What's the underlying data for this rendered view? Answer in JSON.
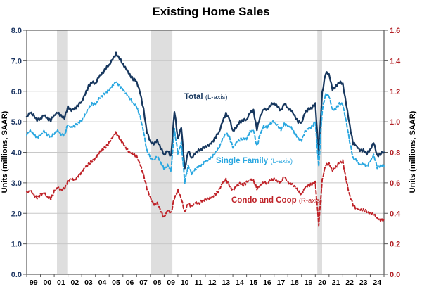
{
  "title": "Existing Home Sales",
  "chart_data": {
    "type": "line",
    "title": "Existing Home Sales",
    "x_range": [
      1999,
      2025
    ],
    "x_tick_labels": [
      "99",
      "00",
      "01",
      "02",
      "03",
      "04",
      "05",
      "06",
      "07",
      "08",
      "09",
      "10",
      "11",
      "12",
      "13",
      "14",
      "15",
      "16",
      "17",
      "18",
      "19",
      "20",
      "21",
      "22",
      "23",
      "24"
    ],
    "grid": true,
    "axes": {
      "left": {
        "title": "Units (millions, SAAR)",
        "min": 0,
        "max": 8,
        "step": 1,
        "tick_labels": [
          "0.0",
          "1.0",
          "2.0",
          "3.0",
          "4.0",
          "5.0",
          "6.0",
          "7.0",
          "8.0"
        ],
        "color": "#1f3864"
      },
      "right": {
        "title": "Units (millions, SAAR)",
        "min": 0,
        "max": 1.6,
        "step": 0.2,
        "tick_labels": [
          "0.0",
          "0.2",
          "0.4",
          "0.6",
          "0.8",
          "1.0",
          "1.2",
          "1.4",
          "1.6"
        ],
        "color": "#b22025"
      }
    },
    "recession_bands": [
      [
        2001.2,
        2001.95
      ],
      [
        2008.05,
        2009.6
      ],
      [
        2020.15,
        2020.5
      ]
    ],
    "series": [
      {
        "name": "Total",
        "label": "Total",
        "label_suffix": "(L-axis)",
        "axis": "left",
        "color": "#17375e",
        "line_style": "solid",
        "line_width": 2.3,
        "x_start": 1999,
        "x_step": 0.25,
        "values": [
          5.15,
          5.3,
          5.2,
          5.05,
          5.1,
          5.25,
          5.12,
          5.05,
          5.2,
          5.3,
          5.18,
          5.12,
          5.5,
          5.4,
          5.45,
          5.55,
          5.65,
          5.9,
          6.15,
          6.3,
          6.25,
          6.5,
          6.6,
          6.75,
          6.85,
          7.05,
          7.22,
          7.08,
          6.9,
          6.75,
          6.55,
          6.4,
          6.3,
          5.95,
          5.4,
          4.65,
          4.35,
          4.3,
          4.4,
          4.15,
          3.9,
          4.05,
          3.85,
          5.35,
          4.45,
          4.85,
          3.45,
          4.05,
          3.8,
          3.95,
          4.05,
          4.1,
          4.2,
          4.25,
          4.35,
          4.5,
          4.65,
          5.0,
          5.25,
          5.1,
          4.7,
          4.85,
          5.0,
          5.05,
          5.05,
          5.3,
          5.35,
          4.75,
          5.2,
          5.45,
          5.4,
          5.55,
          5.6,
          5.5,
          5.35,
          5.6,
          5.45,
          5.4,
          5.2,
          5.0,
          4.95,
          5.3,
          5.4,
          5.45,
          5.6,
          3.95,
          5.95,
          6.6,
          6.55,
          6.05,
          6.15,
          6.3,
          6.25,
          5.6,
          4.9,
          4.3,
          4.2,
          4.05,
          4.05,
          3.95,
          4.1,
          4.35,
          3.9,
          3.95,
          4.0
        ]
      },
      {
        "name": "Single Family",
        "label": "Single Family",
        "label_suffix": "(L-axis)",
        "axis": "left",
        "color": "#2aa7e0",
        "line_style": "dashed",
        "line_width": 2.0,
        "x_start": 1999,
        "x_step": 0.25,
        "values": [
          4.6,
          4.72,
          4.62,
          4.5,
          4.55,
          4.68,
          4.56,
          4.5,
          4.62,
          4.72,
          4.6,
          4.58,
          4.9,
          4.8,
          4.85,
          4.95,
          5.05,
          5.25,
          5.45,
          5.6,
          5.55,
          5.75,
          5.85,
          5.95,
          6.05,
          6.2,
          6.33,
          6.2,
          6.05,
          5.9,
          5.75,
          5.6,
          5.5,
          5.2,
          4.7,
          4.05,
          3.8,
          3.75,
          3.85,
          3.65,
          3.45,
          3.6,
          3.4,
          4.75,
          3.95,
          4.3,
          3.0,
          3.55,
          3.3,
          3.45,
          3.55,
          3.6,
          3.7,
          3.75,
          3.85,
          4.0,
          4.15,
          4.45,
          4.65,
          4.5,
          4.15,
          4.3,
          4.4,
          4.45,
          4.45,
          4.7,
          4.75,
          4.2,
          4.6,
          4.85,
          4.8,
          4.95,
          5.0,
          4.9,
          4.75,
          4.95,
          4.85,
          4.8,
          4.6,
          4.45,
          4.4,
          4.7,
          4.8,
          4.85,
          5.0,
          3.5,
          5.35,
          5.9,
          5.85,
          5.4,
          5.45,
          5.6,
          5.55,
          5.0,
          4.35,
          3.8,
          3.75,
          3.6,
          3.65,
          3.55,
          3.7,
          3.9,
          3.5,
          3.55,
          3.55
        ]
      },
      {
        "name": "Condo and Coop",
        "label": "Condo and Coop",
        "label_suffix": "(R-axis)",
        "axis": "right",
        "color": "#bf2228",
        "line_style": "dashed",
        "line_width": 2.0,
        "x_start": 1999,
        "x_step": 0.25,
        "values": [
          0.53,
          0.55,
          0.52,
          0.5,
          0.52,
          0.54,
          0.51,
          0.5,
          0.54,
          0.57,
          0.55,
          0.56,
          0.61,
          0.63,
          0.62,
          0.65,
          0.67,
          0.7,
          0.72,
          0.74,
          0.76,
          0.8,
          0.82,
          0.84,
          0.86,
          0.9,
          0.93,
          0.89,
          0.86,
          0.83,
          0.8,
          0.79,
          0.77,
          0.72,
          0.65,
          0.56,
          0.5,
          0.46,
          0.47,
          0.42,
          0.37,
          0.42,
          0.4,
          0.5,
          0.55,
          0.5,
          0.41,
          0.47,
          0.44,
          0.47,
          0.46,
          0.48,
          0.49,
          0.5,
          0.51,
          0.53,
          0.55,
          0.6,
          0.62,
          0.58,
          0.55,
          0.58,
          0.6,
          0.59,
          0.6,
          0.62,
          0.61,
          0.56,
          0.58,
          0.61,
          0.6,
          0.62,
          0.62,
          0.61,
          0.6,
          0.64,
          0.6,
          0.6,
          0.58,
          0.55,
          0.52,
          0.57,
          0.58,
          0.59,
          0.6,
          0.33,
          0.62,
          0.72,
          0.72,
          0.68,
          0.7,
          0.73,
          0.74,
          0.62,
          0.52,
          0.46,
          0.43,
          0.42,
          0.42,
          0.41,
          0.4,
          0.4,
          0.37,
          0.36,
          0.36
        ]
      }
    ],
    "style": {
      "band_fill": "#dedede",
      "grid_color": "#c8c8c8",
      "box_color": "#595959",
      "x_label_color": "#000000"
    }
  }
}
